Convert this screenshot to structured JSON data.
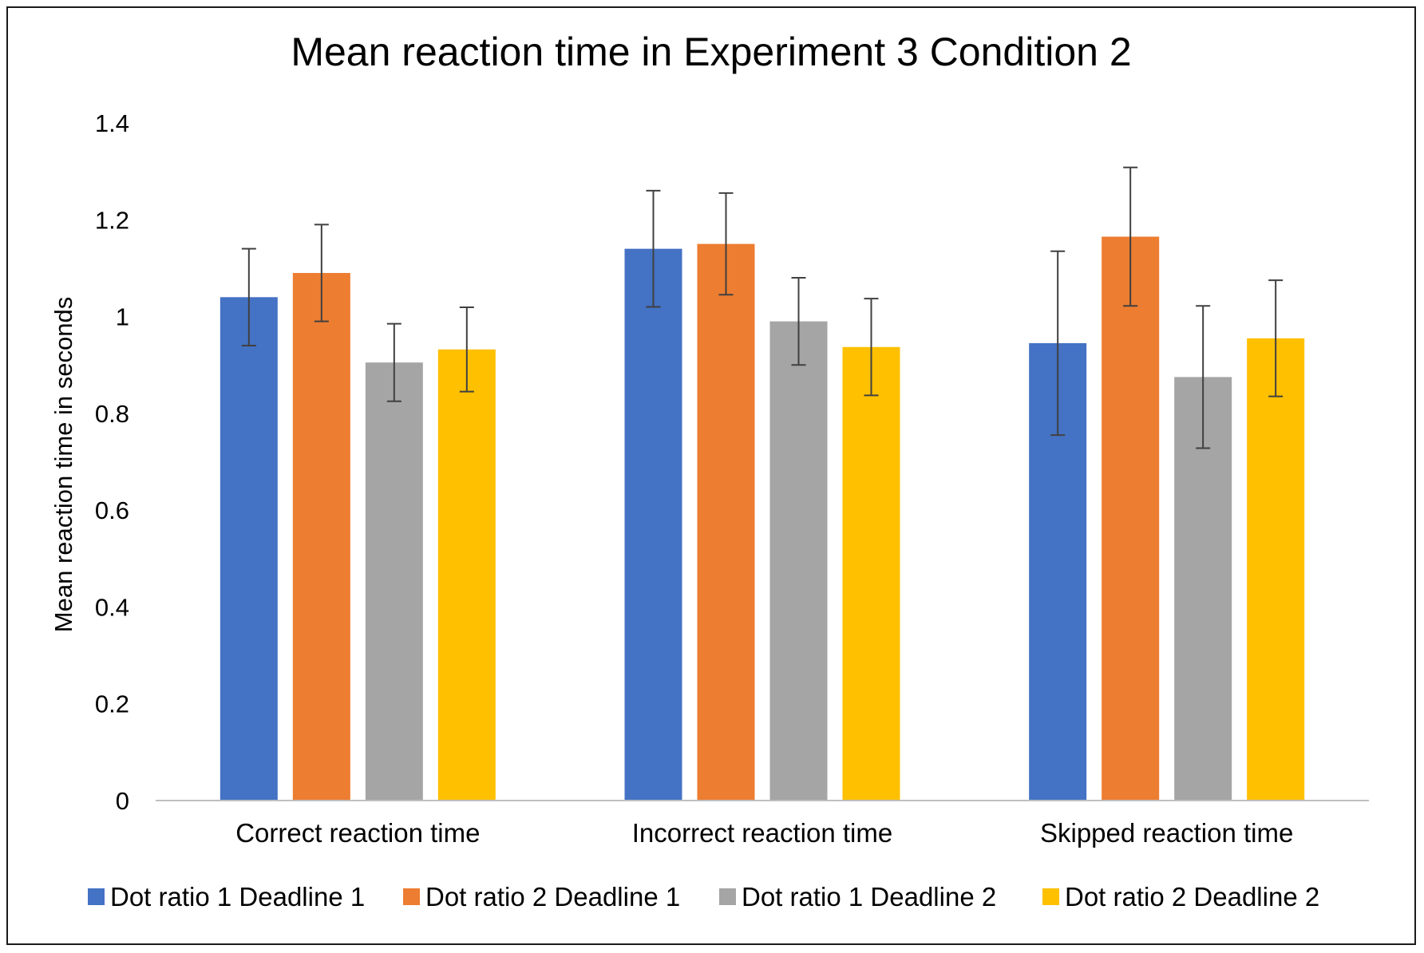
{
  "chart_data": {
    "type": "bar",
    "title": "Mean reaction time in Experiment 3 Condition 2",
    "xlabel": "",
    "ylabel": "Mean reaction time in seconds",
    "ylim": [
      0,
      1.4
    ],
    "yticks": [
      "0",
      "0.2",
      "0.4",
      "0.6",
      "0.8",
      "1",
      "1.2",
      "1.4"
    ],
    "grid": false,
    "legend_position": "bottom",
    "categories": [
      "Correct reaction time",
      "Incorrect reaction time",
      "Skipped reaction time"
    ],
    "series": [
      {
        "name": "Dot ratio 1 Deadline 1",
        "color": "#4472C4",
        "values": [
          1.04,
          1.14,
          0.945
        ],
        "errors": [
          0.1,
          0.12,
          0.19
        ]
      },
      {
        "name": "Dot ratio 2 Deadline 1",
        "color": "#ED7D31",
        "values": [
          1.09,
          1.15,
          1.165
        ],
        "errors": [
          0.1,
          0.105,
          0.143
        ]
      },
      {
        "name": "Dot ratio 1 Deadline 2",
        "color": "#A5A5A5",
        "values": [
          0.905,
          0.99,
          0.875
        ],
        "errors": [
          0.08,
          0.09,
          0.147
        ]
      },
      {
        "name": "Dot ratio 2 Deadline 2",
        "color": "#FFC000",
        "values": [
          0.932,
          0.937,
          0.955
        ],
        "errors": [
          0.087,
          0.1,
          0.12
        ]
      }
    ]
  }
}
